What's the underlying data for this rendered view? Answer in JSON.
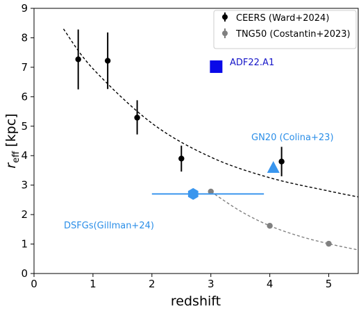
{
  "chart_data": {
    "type": "scatter",
    "xlabel": "redshift",
    "ylabel_main": "r",
    "ylabel_sub": "eff",
    "ylabel_units": " [kpc]",
    "xlim": [
      0,
      5.5
    ],
    "ylim": [
      0,
      9
    ],
    "xticks": [
      0,
      1,
      2,
      3,
      4,
      5
    ],
    "yticks": [
      0,
      1,
      2,
      3,
      4,
      5,
      6,
      7,
      8,
      9
    ],
    "grid": false,
    "legend_position": "top-right",
    "series": [
      {
        "name": "CEERS (Ward+2024)",
        "color": "#000000",
        "marker": "circle",
        "points": [
          {
            "x": 0.75,
            "y": 7.27,
            "yerr_low": 1.02,
            "yerr_high": 1.01
          },
          {
            "x": 1.25,
            "y": 7.22,
            "yerr_low": 0.96,
            "yerr_high": 0.96
          },
          {
            "x": 1.75,
            "y": 5.29,
            "yerr_low": 0.57,
            "yerr_high": 0.59
          },
          {
            "x": 2.5,
            "y": 3.9,
            "yerr_low": 0.44,
            "yerr_high": 0.44
          },
          {
            "x": 4.2,
            "y": 3.8,
            "yerr_low": 0.5,
            "yerr_high": 0.5
          }
        ]
      },
      {
        "name": "TNG50 (Costantin+2023)",
        "color": "#808080",
        "marker": "circle",
        "points": [
          {
            "x": 3.0,
            "y": 2.78,
            "yerr_low": 0,
            "yerr_high": 0
          },
          {
            "x": 4.0,
            "y": 1.62,
            "yerr_low": 0,
            "yerr_high": 0
          },
          {
            "x": 5.0,
            "y": 1.01,
            "yerr_low": 0,
            "yerr_high": 0
          }
        ]
      }
    ],
    "fits": [
      {
        "color": "#000000",
        "x_start": 0.5,
        "x_end": 5.5,
        "y_points": [
          [
            0.5,
            8.3
          ],
          [
            1.0,
            6.95
          ],
          [
            2.0,
            5.1
          ],
          [
            3.0,
            3.95
          ],
          [
            4.0,
            3.25
          ],
          [
            5.0,
            2.8
          ],
          [
            5.5,
            2.6
          ]
        ]
      },
      {
        "color": "#808080",
        "x_start": 3.0,
        "x_end": 5.5,
        "y_points": [
          [
            3.0,
            2.78
          ],
          [
            3.5,
            2.12
          ],
          [
            4.0,
            1.62
          ],
          [
            4.5,
            1.27
          ],
          [
            5.0,
            1.01
          ],
          [
            5.5,
            0.8
          ]
        ]
      }
    ],
    "special_points": [
      {
        "label": "ADF22.A1",
        "x": 3.09,
        "y": 7.02,
        "marker": "square",
        "color": "#0a0ae8",
        "label_color": "#1414c8"
      },
      {
        "label": "GN20 (Colina+23)",
        "x": 4.06,
        "y": 3.58,
        "marker": "triangle",
        "color": "#3a96ee",
        "label_color": "#2a8ee8"
      },
      {
        "label": "DSFGs(Gillman+24)",
        "x": 2.7,
        "y": 2.7,
        "xerr_low": 0.7,
        "xerr_high": 1.2,
        "marker": "hexagon",
        "color": "#3a96ee",
        "label_color": "#2a8ee8"
      }
    ]
  }
}
